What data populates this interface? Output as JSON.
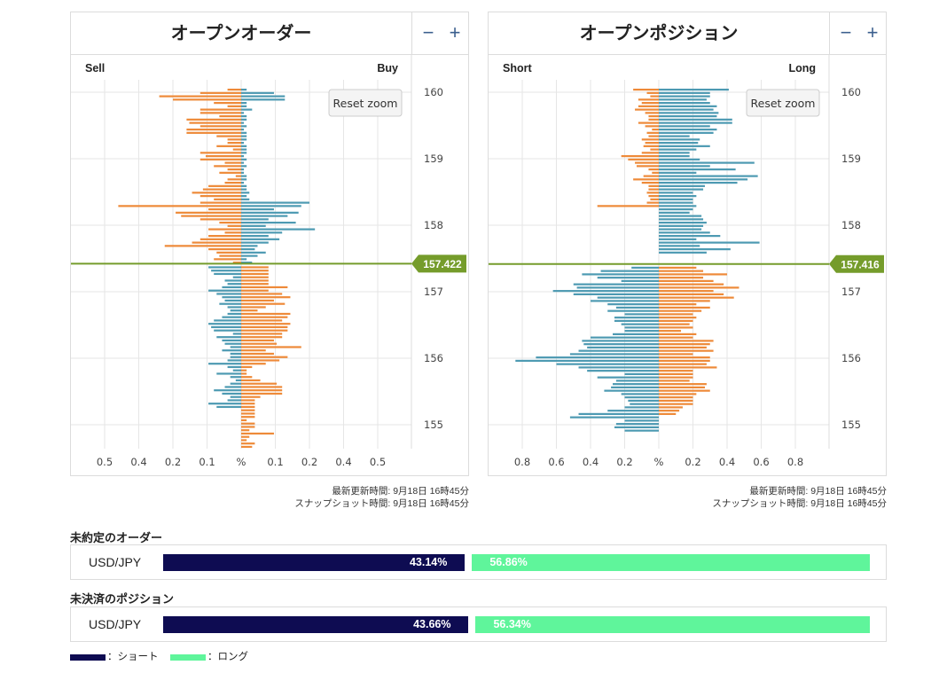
{
  "colors": {
    "buy": "#4d9ab2",
    "sell": "#ee8a39",
    "current": "#759c2b",
    "short_bar": "#0e0c52",
    "long_bar": "#5ff59b"
  },
  "order_chart": {
    "title": "オープンオーダー",
    "left_label": "Sell",
    "right_label": "Buy",
    "reset_label": "Reset zoom",
    "minus": "−",
    "plus": "+",
    "updated": "最新更新時間: 9月18日 16時45分",
    "snapshot": "スナップショット時間: 9月18日 16時45分"
  },
  "position_chart": {
    "title": "オープンポジション",
    "left_label": "Short",
    "right_label": "Long",
    "reset_label": "Reset zoom",
    "minus": "−",
    "plus": "+",
    "updated": "最新更新時間: 9月18日 16時45分",
    "snapshot": "スナップショット時間: 9月18日 16時45分"
  },
  "chart_data": [
    {
      "type": "bar",
      "orientation": "horizontal",
      "diverging": true,
      "title": "オープンオーダー",
      "left_label": "Sell",
      "right_label": "Buy",
      "x_ticks": [
        "0.5",
        "0.4",
        "0.2",
        "0.1",
        "%",
        "0.1",
        "0.2",
        "0.4",
        "0.5"
      ],
      "xlim": [
        -0.52,
        0.52
      ],
      "y_ticks": [
        160,
        159,
        158,
        157,
        156,
        155
      ],
      "ylim": [
        154.7,
        160.2
      ],
      "current_price": 157.422,
      "current_price_label": "157.422",
      "bucket": 0.05,
      "series": [
        {
          "name": "Sell",
          "side": "left",
          "color": "#ee8a39",
          "values": [
            0.05,
            0.15,
            0.3,
            0.25,
            0.1,
            0.05,
            0.15,
            0.15,
            0.08,
            0.2,
            0.19,
            0.15,
            0.2,
            0.2,
            0.09,
            0.05,
            0.05,
            0.09,
            0.03,
            0.15,
            0.13,
            0.15,
            0.06,
            0.1,
            0.05,
            0.08,
            0.02,
            0.05,
            0.06,
            0.12,
            0.14,
            0.18,
            0.15,
            0.1,
            0.15,
            0.45,
            0.12,
            0.24,
            0.22,
            0.15,
            0.08,
            0.05,
            0.12,
            0.06,
            0.12,
            0.15,
            0.18,
            0.28,
            0.12,
            0.09,
            0.08,
            0.1,
            0.03,
            0.08,
            0.15,
            0.15,
            0.17,
            0.19,
            0.13,
            0.07,
            0.04,
            0.05,
            0.14,
            0.1,
            0.08,
            0.15,
            0.18,
            0.03,
            0.1,
            0.12,
            0.18,
            0.14,
            0.15,
            0.15,
            0.5,
            0.12,
            0.16,
            0.17
          ]
        },
        {
          "name": "Buy",
          "side": "right",
          "color": "#ee8a39",
          "values": [
            0.1,
            0.1,
            0.1,
            0.1,
            0.1,
            0.1,
            0.17,
            0.1,
            0.15,
            0.18,
            0.12,
            0.16,
            0.09,
            0.06,
            0.18,
            0.17,
            0.15,
            0.18,
            0.17,
            0.17,
            0.15,
            0.15,
            0.12,
            0.13,
            0.22,
            0.09,
            0.12,
            0.17,
            0.14,
            0.09,
            0.04,
            0.02,
            0.02,
            0.04,
            0.07,
            0.13,
            0.15,
            0.15,
            0.15,
            0.07,
            0.05,
            0.05,
            0.05,
            0.05,
            0.05,
            0.05,
            0.02,
            0.05,
            0.05,
            0.03,
            0.12,
            0.03,
            0.02,
            0.05,
            0.04
          ]
        },
        {
          "name": "Buy",
          "side": "right",
          "color": "#4d9ab2",
          "values": [
            0.02,
            0.12,
            0.16,
            0.16,
            0.02,
            0.02,
            0.04,
            0.01,
            0.02,
            0.02,
            0.01,
            0.02,
            0.01,
            0.02,
            0.02,
            0.02,
            0.01,
            0.02,
            0.02,
            0.02,
            0.01,
            0.02,
            0.01,
            0.02,
            0.01,
            0.01,
            0.02,
            0.02,
            0.01,
            0.02,
            0.02,
            0.03,
            0.02,
            0.03,
            0.25,
            0.22,
            0.12,
            0.21,
            0.17,
            0.1,
            0.2,
            0.09,
            0.27,
            0.15,
            0.1,
            0.14,
            0.1,
            0.06,
            0.05,
            0.09,
            0.06,
            0.02,
            0.04,
            0.05,
            0.1,
            0.06,
            0.05,
            0.03,
            0.03,
            0.06,
            0.05,
            0.05,
            0.05,
            0.03,
            0.05,
            0.03,
            0.1,
            0.06,
            0.07,
            0.03,
            0.05,
            0.04,
            0.05,
            0.03,
            0.1,
            0.02,
            0.03
          ]
        },
        {
          "name": "Sell",
          "side": "left",
          "color": "#4d9ab2",
          "values": [
            0.12,
            0.11,
            0.1,
            0.03,
            0.06,
            0.05,
            0.07,
            0.12,
            0.09,
            0.07,
            0.06,
            0.08,
            0.05,
            0.04,
            0.05,
            0.07,
            0.1,
            0.12,
            0.11,
            0.1,
            0.03,
            0.09,
            0.07,
            0.06,
            0.04,
            0.07,
            0.04,
            0.04,
            0.05,
            0.12,
            0.05,
            0.03,
            0.09,
            0.04,
            0.02,
            0.04,
            0.06,
            0.1,
            0.07,
            0.04,
            0.05,
            0.12,
            0.09
          ]
        }
      ]
    },
    {
      "type": "bar",
      "orientation": "horizontal",
      "diverging": true,
      "title": "オープンポジション",
      "left_label": "Short",
      "right_label": "Long",
      "x_ticks": [
        "0.8",
        "0.6",
        "0.4",
        "0.2",
        "%",
        "0.2",
        "0.4",
        "0.6",
        "0.8"
      ],
      "xlim": [
        -0.93,
        1.0
      ],
      "y_ticks": [
        160,
        159,
        158,
        157,
        156,
        155
      ],
      "ylim": [
        154.7,
        160.2
      ],
      "current_price": 157.416,
      "current_price_label": "157.416",
      "bucket": 0.05,
      "series": [
        {
          "name": "Long",
          "side": "right",
          "color": "#4d9ab2",
          "values": [
            0.41,
            0.3,
            0.3,
            0.28,
            0.3,
            0.34,
            0.32,
            0.35,
            0.34,
            0.43,
            0.43,
            0.3,
            0.34,
            0.32,
            0.18,
            0.24,
            0.23,
            0.3,
            0.22,
            0.18,
            0.18,
            0.24,
            0.56,
            0.3,
            0.45,
            0.22,
            0.58,
            0.52,
            0.46,
            0.27,
            0.26,
            0.2,
            0.22,
            0.2,
            0.2,
            0.22,
            0.2,
            0.18,
            0.25,
            0.26,
            0.28,
            0.26,
            0.25,
            0.3,
            0.36,
            0.22,
            0.59,
            0.24,
            0.42,
            0.28
          ]
        },
        {
          "name": "Short",
          "side": "left",
          "color": "#4d9ab2",
          "values": [
            0.16,
            0.34,
            0.45,
            0.36,
            0.22,
            0.5,
            0.48,
            0.62,
            0.5,
            0.36,
            0.4,
            0.3,
            0.25,
            0.3,
            0.2,
            0.26,
            0.26,
            0.22,
            0.2,
            0.2,
            0.27,
            0.4,
            0.45,
            0.44,
            0.42,
            0.47,
            0.52,
            0.72,
            0.84,
            0.6,
            0.47,
            0.42,
            0.2,
            0.36,
            0.25,
            0.27,
            0.28,
            0.32,
            0.22,
            0.2,
            0.18,
            0.17,
            0.2,
            0.3,
            0.47,
            0.52,
            0.2,
            0.25,
            0.26,
            0.2
          ]
        },
        {
          "name": "Long",
          "side": "right",
          "color": "#ee8a39",
          "values": [
            0.22,
            0.26,
            0.4,
            0.26,
            0.32,
            0.38,
            0.47,
            0.32,
            0.38,
            0.44,
            0.3,
            0.22,
            0.3,
            0.25,
            0.2,
            0.22,
            0.2,
            0.18,
            0.2,
            0.13,
            0.22,
            0.2,
            0.32,
            0.3,
            0.28,
            0.32,
            0.2,
            0.3,
            0.3,
            0.28,
            0.34,
            0.2,
            0.2,
            0.2,
            0.18,
            0.28,
            0.27,
            0.3,
            0.22,
            0.2,
            0.2,
            0.2,
            0.14,
            0.12,
            0.1
          ]
        },
        {
          "name": "Short",
          "side": "left",
          "color": "#ee8a39",
          "values": [
            0.15,
            0.07,
            0.05,
            0.12,
            0.1,
            0.12,
            0.14,
            0.08,
            0.06,
            0.06,
            0.12,
            0.08,
            0.04,
            0.07,
            0.06,
            0.1,
            0.08,
            0.09,
            0.05,
            0.1,
            0.22,
            0.18,
            0.14,
            0.13,
            0.06,
            0.04,
            0.09,
            0.15,
            0.1,
            0.06,
            0.06,
            0.07,
            0.06,
            0.05,
            0.07,
            0.36
          ]
        }
      ]
    }
  ],
  "orders_summary": {
    "title": "未約定のオーダー",
    "pair": "USD/JPY",
    "short_pct": 43.14,
    "long_pct": 56.86,
    "short_label": "43.14%",
    "long_label": "56.86%"
  },
  "positions_summary": {
    "title": "未決済のポジション",
    "pair": "USD/JPY",
    "short_pct": 43.66,
    "long_pct": 56.34,
    "short_label": "43.66%",
    "long_label": "56.34%"
  },
  "legend": {
    "short": "：ショート",
    "long": "：ロング"
  }
}
